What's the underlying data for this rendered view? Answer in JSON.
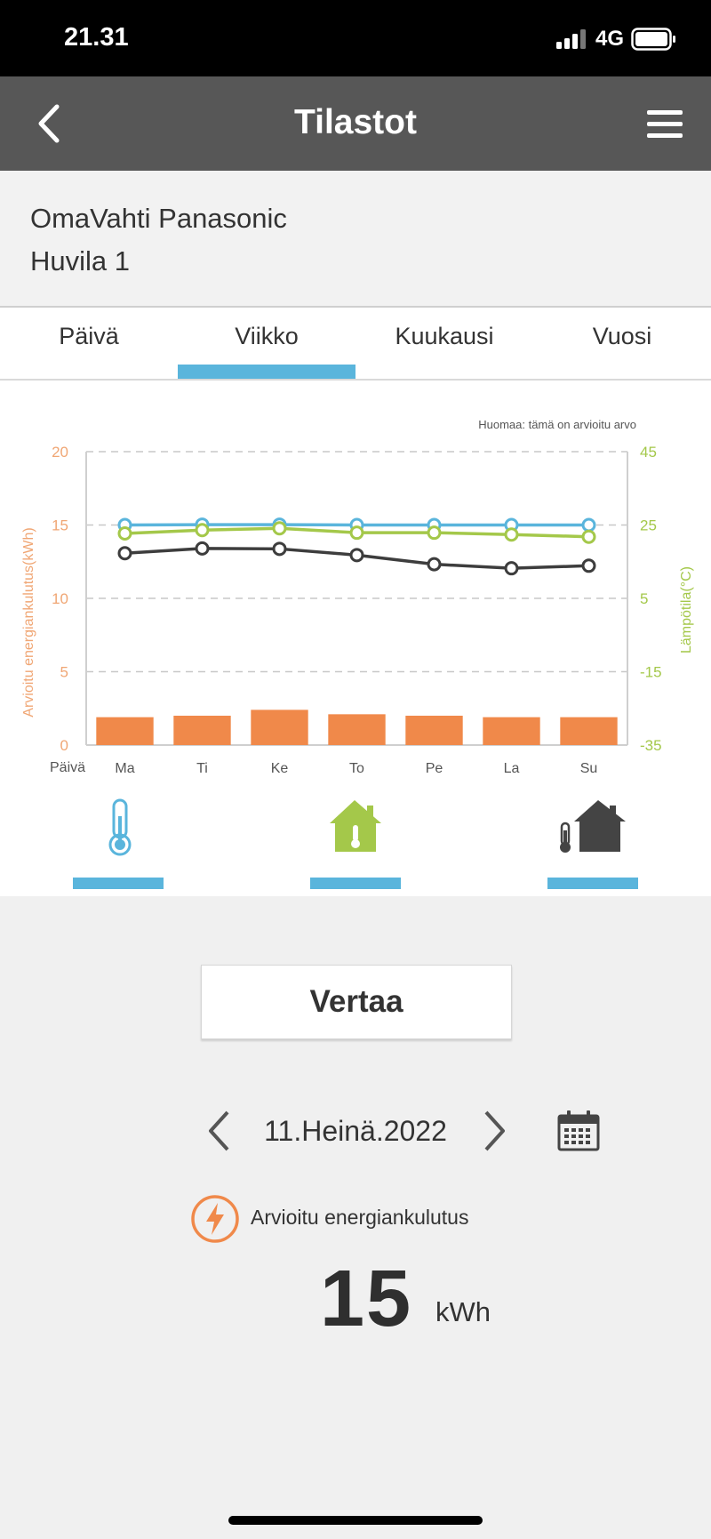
{
  "status_bar": {
    "time": "21.31",
    "network": "4G"
  },
  "header": {
    "title": "Tilastot",
    "back_icon": "chevron-left-icon",
    "menu_icon": "hamburger-menu-icon"
  },
  "device": {
    "name": "OmaVahti Panasonic",
    "location": "Huvila 1"
  },
  "tabs": [
    {
      "label": "Päivä",
      "active": false
    },
    {
      "label": "Viikko",
      "active": true
    },
    {
      "label": "Kuukausi",
      "active": false
    },
    {
      "label": "Vuosi",
      "active": false
    }
  ],
  "chart_note": "Huomaa: tämä on arvioitu arvo",
  "chart_data": {
    "type": "bar",
    "categories": [
      "Ma",
      "Ti",
      "Ke",
      "To",
      "Pe",
      "La",
      "Su"
    ],
    "x_axis_title": "Päivä",
    "ylabel": "Arvioitu energiankulutus(kWh)",
    "ylabel_right": "Lämpötila(°C)",
    "ylim": [
      0,
      20
    ],
    "ylim_right": [
      -35,
      45
    ],
    "yticks": [
      0,
      5,
      10,
      15,
      20
    ],
    "yticks_right": [
      -35,
      -15,
      5,
      25,
      45
    ],
    "grid": "dashed horizontal",
    "series": [
      {
        "kind": "bar",
        "axis": "left",
        "color": "#f0894a",
        "values": [
          1.9,
          2.0,
          2.4,
          2.1,
          2.0,
          1.9,
          1.9
        ]
      },
      {
        "kind": "line",
        "axis": "right",
        "color": "#5ab5dc",
        "values": [
          25.0,
          25.1,
          25.1,
          25.0,
          25.0,
          25.0,
          25.0
        ]
      },
      {
        "kind": "line",
        "axis": "right",
        "color": "#a4c84a",
        "values": [
          22.7,
          23.6,
          24.1,
          22.9,
          22.9,
          22.4,
          21.8
        ]
      },
      {
        "kind": "line",
        "axis": "right",
        "color": "#3d3d3d",
        "values": [
          17.3,
          18.6,
          18.5,
          16.8,
          14.3,
          13.2,
          13.9
        ]
      }
    ]
  },
  "view_icons": [
    "outdoor-thermometer-icon",
    "indoor-temperature-icon",
    "outdoor-indoor-temperature-icon"
  ],
  "compare_button": "Vertaa",
  "date_nav": {
    "date": "11.Heinä.2022"
  },
  "energy": {
    "label": "Arvioitu energiankulutus",
    "value": "15",
    "unit": "kWh"
  },
  "colors": {
    "accent": "#5ab5dc",
    "energy": "#f0894a",
    "temp_green": "#a4c84a",
    "header_bg": "#575757"
  }
}
